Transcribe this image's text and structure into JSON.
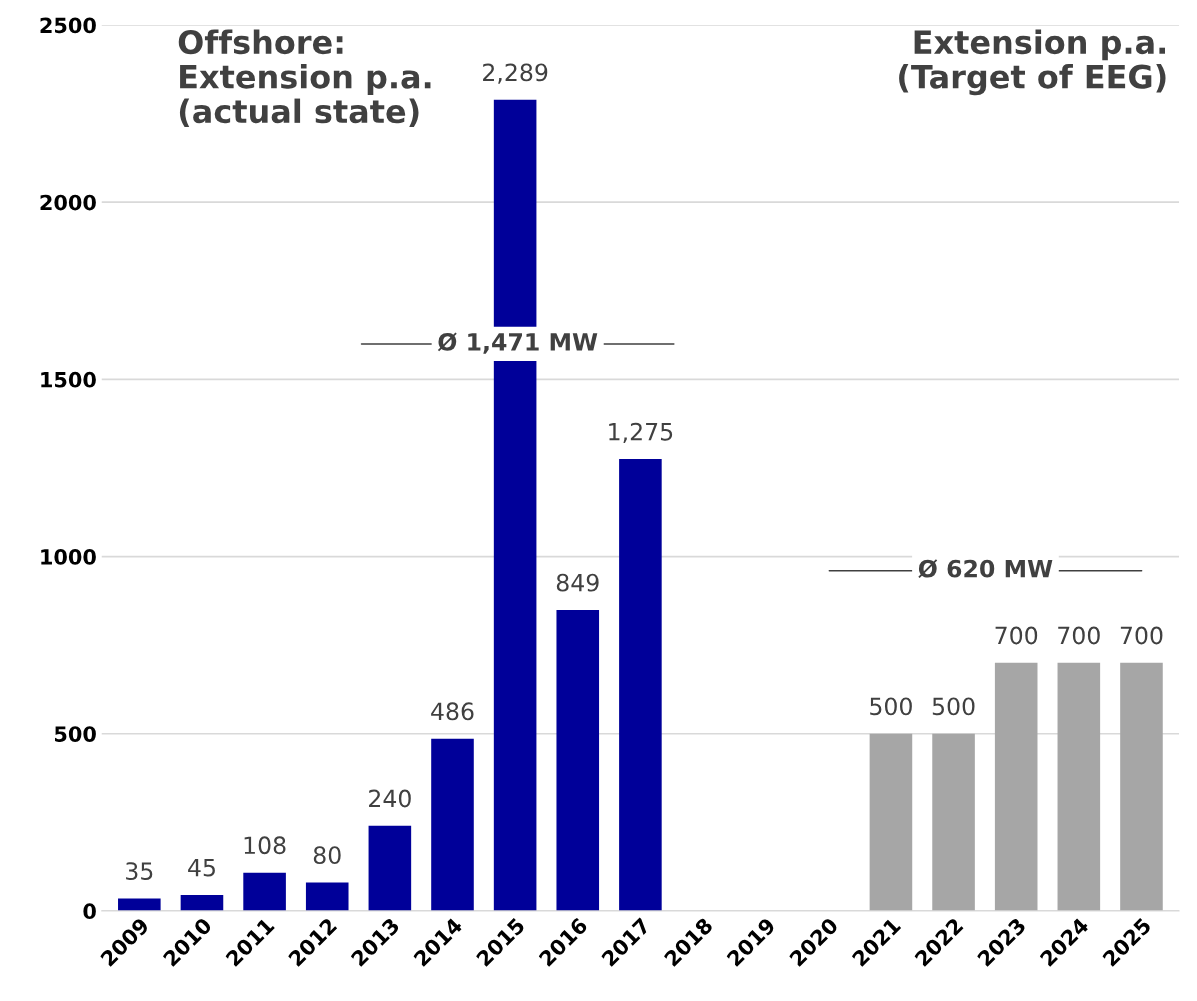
{
  "chart_data": {
    "type": "bar",
    "categories": [
      "2009",
      "2010",
      "2011",
      "2012",
      "2013",
      "2014",
      "2015",
      "2016",
      "2017",
      "2018",
      "2019",
      "2020",
      "2021",
      "2022",
      "2023",
      "2024",
      "2025"
    ],
    "values": [
      35,
      45,
      108,
      80,
      240,
      486,
      2289,
      849,
      1275,
      null,
      null,
      null,
      500,
      500,
      700,
      700,
      700
    ],
    "value_labels": [
      "35",
      "45",
      "108",
      "80",
      "240",
      "486",
      "2,289",
      "849",
      "1,275",
      null,
      null,
      null,
      "500",
      "500",
      "700",
      "700",
      "700"
    ],
    "colors": [
      "#000099",
      "#000099",
      "#000099",
      "#000099",
      "#000099",
      "#000099",
      "#000099",
      "#000099",
      "#000099",
      "#000099",
      "#000099",
      "#000099",
      "#a6a6a6",
      "#a6a6a6",
      "#a6a6a6",
      "#a6a6a6",
      "#a6a6a6"
    ],
    "ylim": [
      0,
      2500
    ],
    "yticks": [
      0,
      500,
      1000,
      1500,
      2000,
      2500
    ],
    "grid": "y",
    "annotations": [
      "Offshore:\nExtension p.a.\n(actual state)",
      "Extension p.a.\n(Target of EEG)",
      "Ø 1,471 MW",
      "Ø 620 MW"
    ]
  }
}
